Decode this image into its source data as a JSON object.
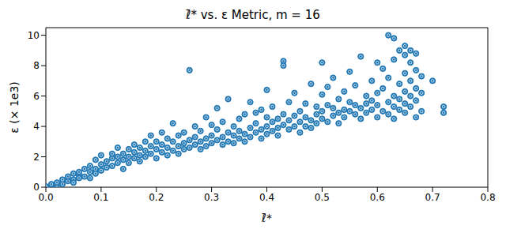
{
  "chart_data": {
    "type": "scatter",
    "title": "ℓ̄* vs. ε Metric, m = 16",
    "x_label": "ℓ̄*",
    "y_label": "ε (× 1e3)",
    "color": "#1f77b4",
    "marker": "o",
    "grid": false,
    "xlim": [
      0,
      0.8
    ],
    "xticks": [
      {
        "value": 0,
        "label": "0.0"
      },
      0.1,
      0.2,
      0.3,
      0.4,
      0.5,
      0.6,
      0.7,
      0.8
    ],
    "ylim": [
      0,
      10.5
    ],
    "yticks": [
      0,
      2,
      4,
      6,
      8,
      10
    ],
    "x": [
      0,
      0.01,
      0.01,
      0.02,
      0.02,
      0.03,
      0.03,
      0.04,
      0.04,
      0.05,
      0.05,
      0.05,
      0.06,
      0.06,
      0.06,
      0.07,
      0.07,
      0.08,
      0.08,
      0.08,
      0.09,
      0.09,
      0.09,
      0.1,
      0.1,
      0.1,
      0.11,
      0.11,
      0.12,
      0.12,
      0.12,
      0.13,
      0.13,
      0.13,
      0.14,
      0.14,
      0.14,
      0.15,
      0.15,
      0.15,
      0.16,
      0.16,
      0.16,
      0.17,
      0.17,
      0.17,
      0.18,
      0.18,
      0.18,
      0.19,
      0.19,
      0.19,
      0.2,
      0.2,
      0.2,
      0.21,
      0.21,
      0.21,
      0.22,
      0.22,
      0.22,
      0.23,
      0.23,
      0.23,
      0.24,
      0.24,
      0.24,
      0.25,
      0.25,
      0.25,
      0.26,
      0.26,
      0.26,
      0.27,
      0.27,
      0.27,
      0.28,
      0.28,
      0.28,
      0.29,
      0.29,
      0.29,
      0.3,
      0.3,
      0.3,
      0.31,
      0.31,
      0.31,
      0.32,
      0.32,
      0.32,
      0.33,
      0.33,
      0.33,
      0.34,
      0.34,
      0.34,
      0.35,
      0.35,
      0.35,
      0.36,
      0.36,
      0.36,
      0.37,
      0.37,
      0.37,
      0.38,
      0.38,
      0.38,
      0.39,
      0.39,
      0.39,
      0.4,
      0.4,
      0.4,
      0.4,
      0.41,
      0.41,
      0.41,
      0.42,
      0.42,
      0.42,
      0.43,
      0.43,
      0.43,
      0.43,
      0.44,
      0.44,
      0.44,
      0.45,
      0.45,
      0.45,
      0.46,
      0.46,
      0.46,
      0.47,
      0.47,
      0.47,
      0.48,
      0.48,
      0.48,
      0.49,
      0.49,
      0.49,
      0.5,
      0.5,
      0.5,
      0.5,
      0.51,
      0.51,
      0.51,
      0.52,
      0.52,
      0.52,
      0.53,
      0.53,
      0.53,
      0.54,
      0.54,
      0.54,
      0.55,
      0.55,
      0.55,
      0.56,
      0.56,
      0.56,
      0.57,
      0.57,
      0.57,
      0.58,
      0.58,
      0.58,
      0.59,
      0.59,
      0.59,
      0.6,
      0.6,
      0.6,
      0.6,
      0.61,
      0.61,
      0.61,
      0.62,
      0.62,
      0.62,
      0.62,
      0.63,
      0.63,
      0.63,
      0.63,
      0.63,
      0.64,
      0.64,
      0.64,
      0.64,
      0.65,
      0.65,
      0.65,
      0.65,
      0.65,
      0.65,
      0.66,
      0.66,
      0.66,
      0.66,
      0.66,
      0.67,
      0.67,
      0.67,
      0.67,
      0.67,
      0.68,
      0.68,
      0.68,
      0.7,
      0.72,
      0.72
    ],
    "values": [
      0.05,
      0.1,
      0.2,
      0.15,
      0.3,
      0.2,
      0.5,
      0.4,
      0.7,
      0.5,
      0.9,
      0.3,
      0.8,
      1.0,
      0.6,
      1.2,
      0.7,
      1.0,
      1.4,
      0.6,
      1.2,
      1.8,
      0.9,
      1.5,
      1.1,
      2.1,
      1.3,
      1.7,
      1.9,
      1.4,
      2.2,
      1.6,
      2.0,
      2.6,
      1.8,
      2.2,
      1.2,
      2.0,
      2.5,
      1.6,
      2.3,
      1.9,
      2.8,
      2.1,
      2.6,
      1.7,
      2.4,
      3.0,
      2.0,
      2.2,
      2.7,
      3.4,
      2.5,
      1.9,
      3.0,
      2.3,
      2.8,
      3.6,
      2.1,
      2.6,
      3.2,
      2.4,
      3.0,
      4.2,
      2.7,
      3.4,
      2.2,
      2.9,
      3.6,
      2.5,
      7.7,
      3.1,
      2.6,
      3.3,
      2.8,
      4.0,
      3.0,
      2.5,
      3.7,
      3.2,
      4.6,
      2.7,
      3.4,
      2.9,
      4.1,
      3.1,
      3.8,
      5.2,
      3.3,
      2.8,
      4.3,
      3.6,
      3.0,
      5.8,
      3.4,
      4.0,
      2.9,
      3.7,
      4.5,
      3.2,
      3.5,
      4.8,
      3.0,
      3.9,
      3.3,
      5.6,
      4.2,
      3.6,
      4.9,
      3.8,
      3.2,
      5.1,
      4.0,
      3.5,
      4.6,
      6.4,
      3.7,
      4.3,
      5.3,
      3.9,
      4.5,
      3.4,
      8.3,
      8.0,
      4.1,
      4.8,
      3.8,
      4.4,
      5.6,
      4.0,
      4.7,
      6.2,
      4.3,
      3.6,
      5.0,
      4.6,
      4.0,
      5.5,
      4.4,
      6.8,
      3.9,
      4.8,
      5.3,
      4.2,
      8.2,
      5.0,
      4.5,
      6.1,
      4.3,
      5.4,
      6.6,
      4.7,
      5.2,
      7.2,
      4.9,
      4.2,
      5.8,
      5.1,
      6.3,
      4.6,
      5.0,
      5.6,
      7.6,
      4.8,
      5.4,
      6.7,
      5.2,
      4.5,
      8.6,
      5.5,
      6.0,
      4.9,
      5.7,
      7.0,
      5.1,
      5.4,
      6.2,
      4.6,
      8.2,
      5.0,
      6.5,
      7.8,
      10.0,
      5.6,
      4.8,
      7.2,
      9.8,
      6.0,
      5.3,
      8.4,
      4.5,
      5.8,
      6.8,
      9.0,
      5.1,
      9.3,
      6.3,
      7.5,
      5.5,
      8.7,
      4.9,
      6.0,
      7.0,
      8.2,
      5.3,
      9.0,
      5.7,
      6.5,
      7.7,
      4.6,
      8.8,
      6.2,
      5.0,
      7.3,
      7.0,
      5.3,
      4.9
    ]
  }
}
